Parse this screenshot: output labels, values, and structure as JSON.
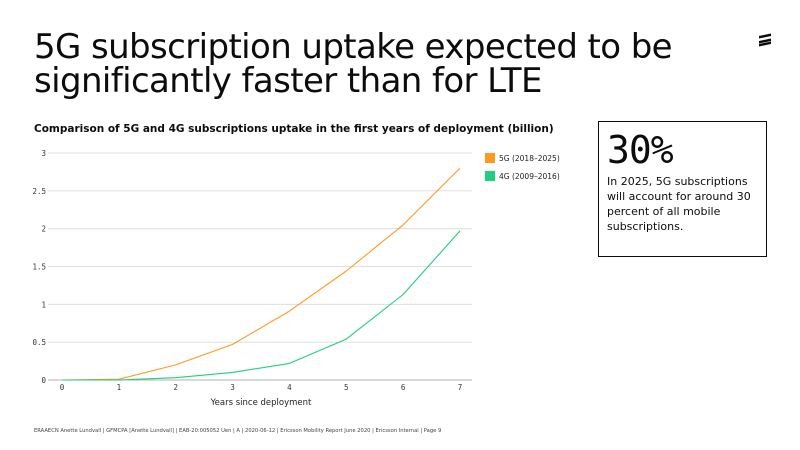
{
  "slide": {
    "title_lines": [
      "5G subscription uptake expected to be",
      "significantly faster than for LTE"
    ],
    "footer": "ERAAECN Anette Lundvall  |  GFMCPA [Anette Lundvall]  |  EAB-20:005052  Uen  |  A  |  2020-06-12  |  Ericsson Mobility Report June 2020  |  Ericsson Internal  |  Page 9",
    "logo_icon": "ericsson-logo-icon"
  },
  "callout": {
    "value": "30%",
    "text": "In 2025, 5G subscriptions will account for around 30 percent of all mobile subscriptions."
  },
  "chart_data": {
    "type": "line",
    "title": "Comparison of 5G and 4G subscriptions uptake in the first years of deployment (billion)",
    "xlabel": "Years since deployment",
    "ylabel": "",
    "x": [
      0,
      1,
      2,
      3,
      4,
      5,
      6,
      7
    ],
    "x_tick_labels": [
      "0",
      "1",
      "2",
      "3",
      "4",
      "5",
      "6",
      "7"
    ],
    "y_tick_labels": [
      "0",
      "0.5",
      "1",
      "1.5",
      "2",
      "2.5",
      "3"
    ],
    "ylim": [
      0,
      3
    ],
    "grid": "horizontal",
    "legend_position": "right",
    "series": [
      {
        "name": "5G (2018–2025)",
        "color": "#ff9a1f",
        "values": [
          0,
          0.01,
          0.2,
          0.47,
          0.91,
          1.44,
          2.05,
          2.8
        ]
      },
      {
        "name": "4G (2009–2016)",
        "color": "#1fce82",
        "values": [
          0,
          0,
          0.03,
          0.1,
          0.22,
          0.54,
          1.13,
          1.97
        ]
      }
    ]
  }
}
